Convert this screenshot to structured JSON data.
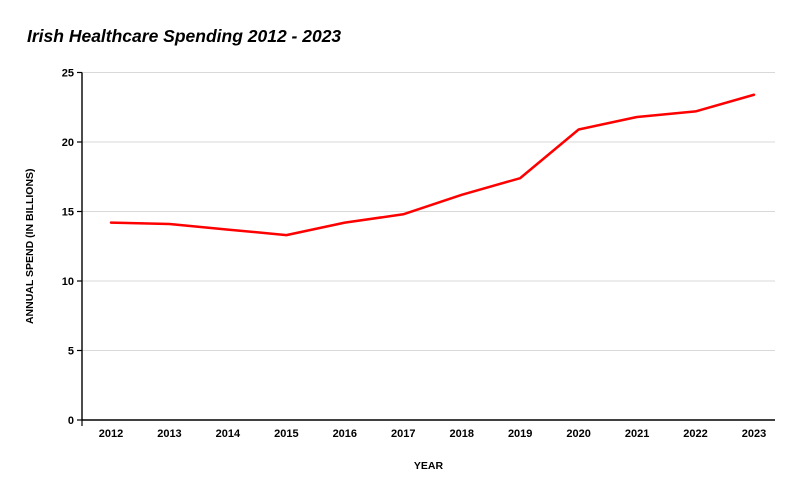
{
  "title": "Irish Healthcare Spending 2012 - 2023",
  "colors": {
    "line": "#ff0000",
    "grid": "#d9d9d9",
    "axis": "#000000",
    "text": "#000000",
    "background": "#ffffff"
  },
  "chart_data": {
    "type": "line",
    "title": "Irish Healthcare Spending 2012 - 2023",
    "xlabel": "YEAR",
    "ylabel": "ANNUAL SPEND (IN BILLIONS)",
    "categories": [
      "2012",
      "2013",
      "2014",
      "2015",
      "2016",
      "2017",
      "2018",
      "2019",
      "2020",
      "2021",
      "2022",
      "2023"
    ],
    "values": [
      14.2,
      14.1,
      13.7,
      13.3,
      14.2,
      14.8,
      16.2,
      17.4,
      20.9,
      21.8,
      22.2,
      23.4
    ],
    "ylim": [
      0,
      25
    ],
    "yticks": [
      0,
      5,
      10,
      15,
      20,
      25
    ],
    "grid": true,
    "legend": false,
    "line_color": "#ff0000"
  }
}
